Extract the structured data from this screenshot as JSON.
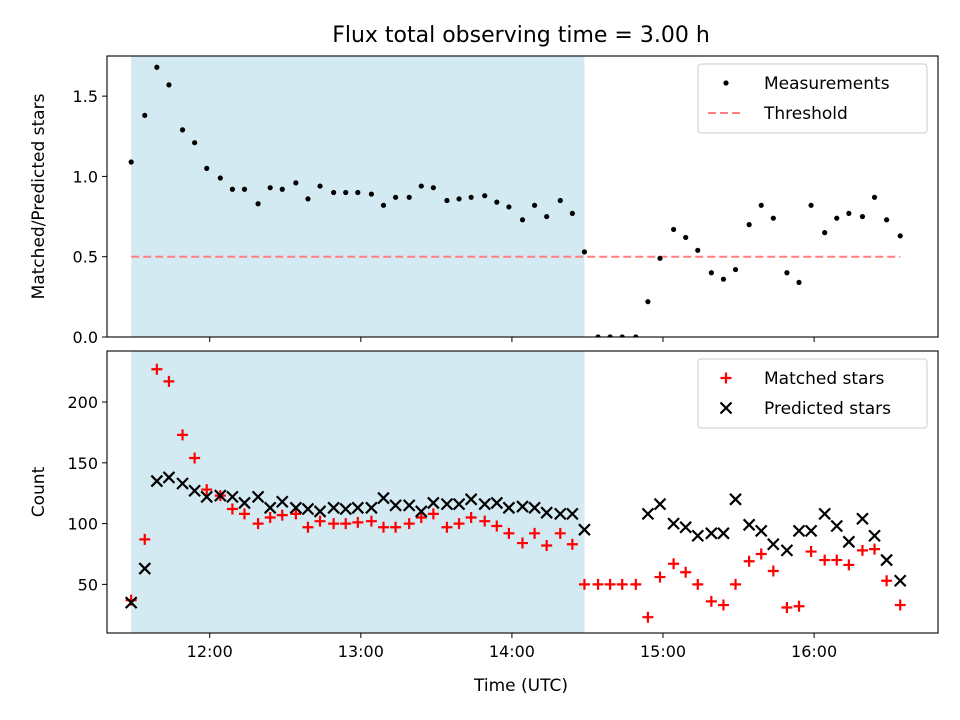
{
  "figure": {
    "title": "Flux total observing time = 3.00 h",
    "xlabel": "Time (UTC)"
  },
  "colors": {
    "shade": "#add8e6",
    "threshold": "#ff7f7f",
    "matched": "#ff0000",
    "predicted": "#000000",
    "measurement": "#000000"
  },
  "chart_data": [
    {
      "type": "scatter",
      "panel": "top",
      "ylabel": "Matched/Predicted stars",
      "xlim": [
        11.32,
        16.82
      ],
      "ylim": [
        0,
        1.75
      ],
      "yticks": [
        0.0,
        0.5,
        1.0,
        1.5
      ],
      "ytick_labels": [
        "0.0",
        "0.5",
        "1.0",
        "1.5"
      ],
      "xticks": [
        12,
        13,
        14,
        15,
        16
      ],
      "xtick_labels": [
        "12:00",
        "13:00",
        "14:00",
        "15:00",
        "16:00"
      ],
      "shaded_span": [
        11.48,
        14.48
      ],
      "legend": {
        "position": "upper right",
        "items": [
          "Measurements",
          "Threshold"
        ]
      },
      "threshold": {
        "name": "Threshold",
        "y": 0.5,
        "x_start": 11.48,
        "x_end": 16.57,
        "style": "dashed"
      },
      "series": [
        {
          "name": "Measurements",
          "marker": "dot",
          "x": [
            11.48,
            11.57,
            11.65,
            11.73,
            11.82,
            11.9,
            11.98,
            12.07,
            12.15,
            12.23,
            12.32,
            12.4,
            12.48,
            12.57,
            12.65,
            12.73,
            12.82,
            12.9,
            12.98,
            13.07,
            13.15,
            13.23,
            13.32,
            13.4,
            13.48,
            13.57,
            13.65,
            13.73,
            13.82,
            13.9,
            13.98,
            14.07,
            14.15,
            14.23,
            14.32,
            14.4,
            14.48,
            14.57,
            14.65,
            14.73,
            14.82,
            14.9,
            14.98,
            15.07,
            15.15,
            15.23,
            15.32,
            15.4,
            15.48,
            15.57,
            15.65,
            15.73,
            15.82,
            15.9,
            15.98,
            16.07,
            16.15,
            16.23,
            16.32,
            16.4,
            16.48,
            16.57
          ],
          "y": [
            1.09,
            1.38,
            1.68,
            1.57,
            1.29,
            1.21,
            1.05,
            0.99,
            0.92,
            0.92,
            0.83,
            0.93,
            0.92,
            0.96,
            0.86,
            0.94,
            0.9,
            0.9,
            0.9,
            0.89,
            0.82,
            0.87,
            0.87,
            0.94,
            0.93,
            0.85,
            0.86,
            0.87,
            0.88,
            0.84,
            0.81,
            0.73,
            0.82,
            0.75,
            0.85,
            0.77,
            0.53,
            0.0,
            0.0,
            0.0,
            0.0,
            0.22,
            0.49,
            0.67,
            0.62,
            0.54,
            0.4,
            0.36,
            0.42,
            0.7,
            0.82,
            0.74,
            0.4,
            0.34,
            0.82,
            0.65,
            0.74,
            0.77,
            0.75,
            0.87,
            0.73,
            0.63
          ]
        }
      ]
    },
    {
      "type": "scatter",
      "panel": "bottom",
      "ylabel": "Count",
      "xlabel": "Time (UTC)",
      "xlim": [
        11.32,
        16.82
      ],
      "ylim": [
        10,
        242
      ],
      "yticks": [
        50,
        100,
        150,
        200
      ],
      "ytick_labels": [
        "50",
        "100",
        "150",
        "200"
      ],
      "xticks": [
        12,
        13,
        14,
        15,
        16
      ],
      "xtick_labels": [
        "12:00",
        "13:00",
        "14:00",
        "15:00",
        "16:00"
      ],
      "shaded_span": [
        11.48,
        14.48
      ],
      "legend": {
        "position": "upper right",
        "items": [
          "Matched stars",
          "Predicted stars"
        ]
      },
      "series": [
        {
          "name": "Matched stars",
          "marker": "plus",
          "x": [
            11.48,
            11.57,
            11.65,
            11.73,
            11.82,
            11.9,
            11.98,
            12.07,
            12.15,
            12.23,
            12.32,
            12.4,
            12.48,
            12.57,
            12.65,
            12.73,
            12.82,
            12.9,
            12.98,
            13.07,
            13.15,
            13.23,
            13.32,
            13.4,
            13.48,
            13.57,
            13.65,
            13.73,
            13.82,
            13.9,
            13.98,
            14.07,
            14.15,
            14.23,
            14.32,
            14.4,
            14.48,
            14.57,
            14.65,
            14.73,
            14.82,
            14.9,
            14.98,
            15.07,
            15.15,
            15.23,
            15.32,
            15.4,
            15.48,
            15.57,
            15.65,
            15.73,
            15.82,
            15.9,
            15.98,
            16.07,
            16.15,
            16.23,
            16.32,
            16.4,
            16.48,
            16.57
          ],
          "y": [
            37,
            87,
            227,
            217,
            173,
            154,
            128,
            123,
            112,
            108,
            100,
            105,
            107,
            108,
            97,
            102,
            100,
            100,
            101,
            102,
            97,
            97,
            100,
            105,
            108,
            97,
            100,
            105,
            102,
            98,
            92,
            84,
            92,
            82,
            92,
            83,
            50,
            50,
            50,
            50,
            50,
            23,
            56,
            67,
            60,
            50,
            36,
            33,
            50,
            69,
            75,
            61,
            31,
            32,
            77,
            70,
            70,
            66,
            78,
            79,
            53,
            33
          ]
        },
        {
          "name": "Predicted stars",
          "marker": "x",
          "x": [
            11.48,
            11.57,
            11.65,
            11.73,
            11.82,
            11.9,
            11.98,
            12.07,
            12.15,
            12.23,
            12.32,
            12.4,
            12.48,
            12.57,
            12.65,
            12.73,
            12.82,
            12.9,
            12.98,
            13.07,
            13.15,
            13.23,
            13.32,
            13.4,
            13.48,
            13.57,
            13.65,
            13.73,
            13.82,
            13.9,
            13.98,
            14.07,
            14.15,
            14.23,
            14.32,
            14.4,
            14.48,
            14.9,
            14.98,
            15.07,
            15.15,
            15.23,
            15.32,
            15.4,
            15.48,
            15.57,
            15.65,
            15.73,
            15.82,
            15.9,
            15.98,
            16.07,
            16.15,
            16.23,
            16.32,
            16.4,
            16.48,
            16.57
          ],
          "y": [
            35,
            63,
            135,
            138,
            133,
            127,
            122,
            123,
            122,
            117,
            122,
            113,
            118,
            113,
            112,
            110,
            113,
            112,
            113,
            113,
            121,
            115,
            115,
            110,
            117,
            116,
            116,
            120,
            116,
            117,
            113,
            114,
            113,
            109,
            108,
            108,
            95,
            108,
            116,
            100,
            97,
            90,
            92,
            92,
            120,
            99,
            94,
            83,
            78,
            94,
            94,
            108,
            98,
            85,
            104,
            90,
            70,
            53
          ]
        }
      ]
    }
  ]
}
